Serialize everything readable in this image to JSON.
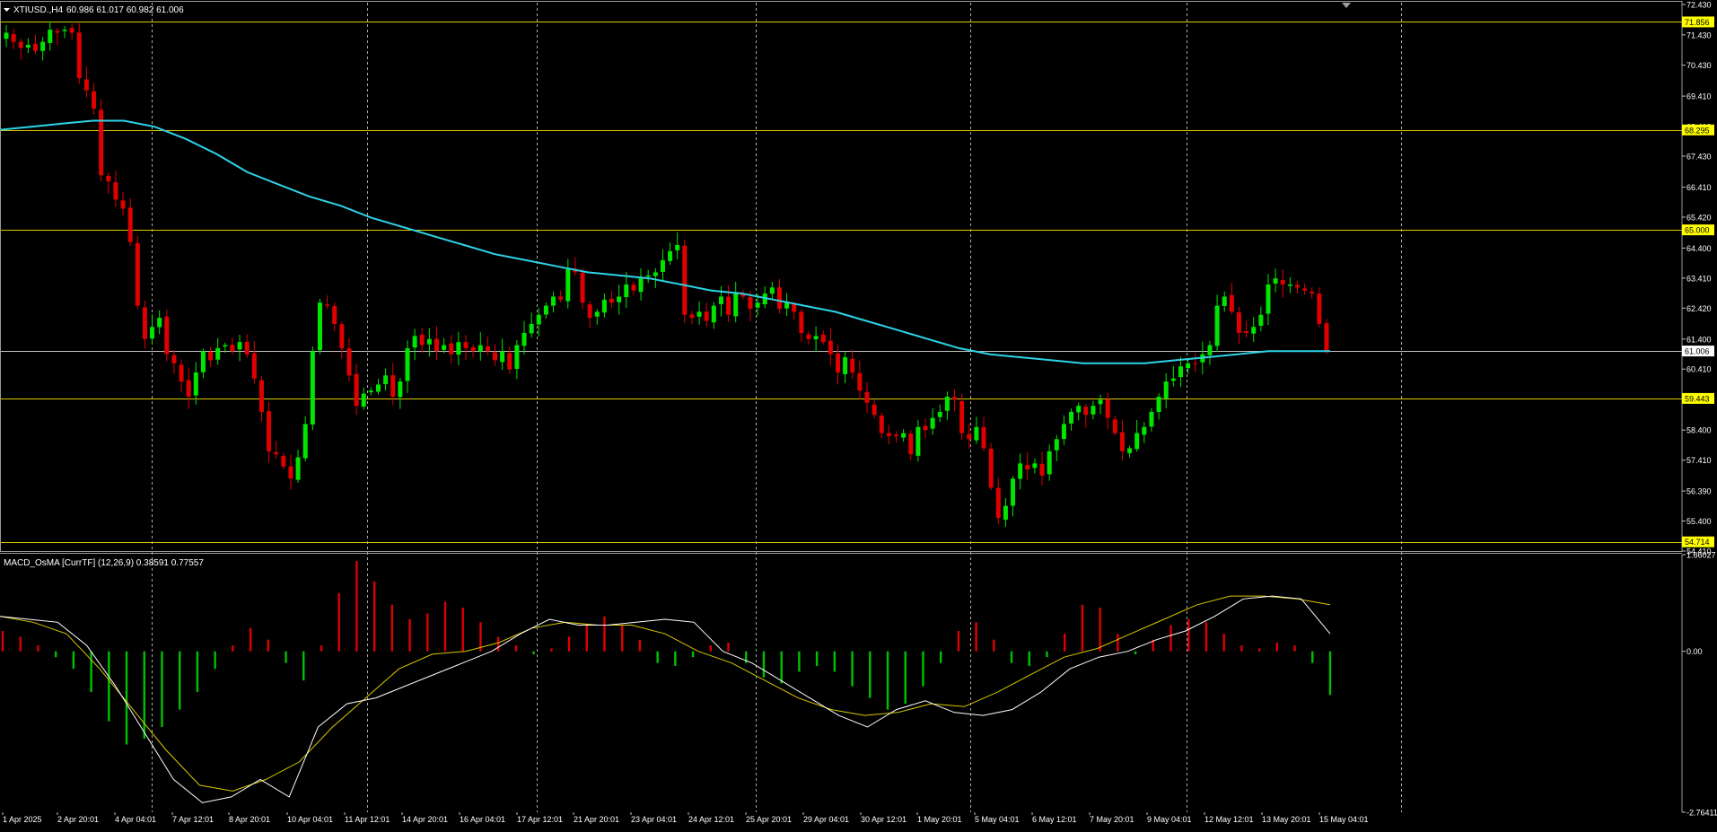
{
  "header": {
    "symbol": "XTIUSD.,H4",
    "ohlc": "60.986 61.017 60.982 61.006",
    "indicator_label": "MACD_OsMA [CurrTF] (12,26,9) 0.38591 0.77557"
  },
  "colors": {
    "background": "#000000",
    "bull": "#00e600",
    "bear": "#e00000",
    "ma_line": "#2ed3e6",
    "level_line": "#d8c800",
    "label_bg_yellow": "#ffff00",
    "current_price_line": "#c0c0c0",
    "macd_main": "#ffffff",
    "macd_signal": "#d8c800",
    "hist_up": "#e00000",
    "hist_down": "#00c000",
    "grid": "#c8c8c8"
  },
  "chart_data": [
    {
      "type": "candlestick",
      "timeframe": "H4",
      "symbol": "XTIUSD.",
      "ylim": [
        54.41,
        72.49
      ],
      "y_ticks": [
        "72.430",
        "71.430",
        "70.430",
        "69.410",
        "68.410",
        "67.430",
        "66.410",
        "65.420",
        "64.400",
        "63.410",
        "62.420",
        "61.400",
        "60.410",
        "59.400",
        "58.400",
        "57.410",
        "56.390",
        "55.400",
        "54.410"
      ],
      "price_labels": [
        {
          "text": "71.856",
          "value": 71.856,
          "style": "level"
        },
        {
          "text": "68.295",
          "value": 68.295,
          "style": "level"
        },
        {
          "text": "65.000",
          "value": 65.0,
          "style": "level"
        },
        {
          "text": "61.006",
          "value": 61.006,
          "style": "current"
        },
        {
          "text": "59.443",
          "value": 59.443,
          "style": "level"
        },
        {
          "text": "54.714",
          "value": 54.714,
          "style": "level"
        }
      ],
      "x_labels": [
        "1 Apr 2025",
        "2 Apr 20:01",
        "4 Apr 04:01",
        "7 Apr 12:01",
        "8 Apr 20:01",
        "10 Apr 04:01",
        "11 Apr 12:01",
        "14 Apr 20:01",
        "16 Apr 04:01",
        "17 Apr 12:01",
        "21 Apr 20:01",
        "23 Apr 04:01",
        "24 Apr 12:01",
        "25 Apr 20:01",
        "29 Apr 04:01",
        "30 Apr 12:01",
        "1 May 20:01",
        "5 May 04:01",
        "6 May 12:01",
        "7 May 20:01",
        "9 May 04:01",
        "12 May 12:01",
        "13 May 20:01",
        "15 May 04:01"
      ],
      "close_path": [
        71.5,
        71.2,
        71.0,
        71.1,
        70.9,
        71.2,
        71.6,
        71.5,
        71.6,
        71.5,
        70.0,
        69.6,
        69.0,
        66.8,
        66.6,
        66.0,
        65.7,
        64.6,
        62.5,
        61.4,
        61.8,
        62.1,
        60.9,
        60.6,
        60.0,
        59.5,
        60.3,
        61.0,
        60.7,
        61.1,
        61.2,
        61.0,
        61.3,
        60.9,
        60.1,
        59.0,
        57.7,
        57.6,
        57.2,
        56.8,
        57.5,
        58.6,
        61.0,
        62.6,
        62.5,
        61.9,
        61.1,
        60.2,
        59.2,
        59.6,
        59.7,
        59.9,
        60.2,
        59.5,
        60.0,
        61.1,
        61.5,
        61.2,
        61.4,
        61.0,
        61.2,
        60.9,
        61.3,
        61.1,
        61.0,
        61.2,
        61.0,
        60.7,
        61.0,
        60.4,
        61.2,
        61.6,
        61.9,
        62.2,
        62.5,
        62.8,
        62.7,
        63.7,
        63.6,
        62.6,
        62.1,
        62.3,
        62.7,
        62.6,
        62.8,
        63.2,
        63.0,
        63.4,
        63.5,
        63.6,
        64.0,
        64.3,
        64.5,
        62.2,
        62.1,
        62.3,
        62.0,
        62.5,
        62.8,
        62.2,
        62.9,
        62.8,
        62.4,
        62.6,
        62.9,
        63.1,
        62.4,
        62.6,
        62.3,
        61.6,
        61.4,
        61.5,
        61.3,
        60.9,
        60.3,
        60.8,
        60.3,
        59.7,
        59.3,
        58.9,
        58.3,
        58.2,
        58.2,
        58.3,
        57.6,
        58.5,
        58.4,
        58.8,
        59.0,
        59.5,
        59.4,
        58.3,
        58.1,
        58.5,
        57.8,
        56.5,
        55.5,
        55.9,
        56.8,
        57.3,
        57.1,
        57.3,
        56.9,
        57.7,
        58.1,
        58.6,
        59.0,
        59.2,
        58.9,
        59.2,
        59.4,
        58.8,
        58.3,
        57.7,
        57.8,
        58.3,
        58.5,
        59.0,
        59.5,
        60.0,
        60.1,
        60.5,
        60.6,
        60.6,
        60.9,
        61.2,
        62.5,
        62.8,
        62.3,
        61.6,
        61.6,
        61.8,
        62.2,
        63.2,
        63.4,
        63.2,
        63.2,
        63.1,
        63.0,
        62.9,
        61.9,
        61.0
      ],
      "ma_path": [
        68.3,
        68.4,
        68.5,
        68.6,
        68.6,
        68.4,
        68.0,
        67.5,
        66.9,
        66.5,
        66.1,
        65.8,
        65.4,
        65.1,
        64.8,
        64.5,
        64.2,
        64.0,
        63.8,
        63.6,
        63.5,
        63.4,
        63.2,
        63.0,
        62.9,
        62.7,
        62.5,
        62.3,
        62.0,
        61.7,
        61.4,
        61.1,
        60.9,
        60.8,
        60.7,
        60.6,
        60.6,
        60.6,
        60.7,
        60.8,
        60.9,
        61.0,
        61.0,
        61.0
      ]
    },
    {
      "type": "bar",
      "name": "MACD_OsMA [CurrTF] (12,26,9)",
      "ylim": [
        -2.76411,
        1.66027
      ],
      "y_ticks": [
        "1.66027",
        "0.00",
        "-2.76411"
      ],
      "histogram": [
        0.35,
        0.25,
        0.1,
        -0.1,
        -0.3,
        -0.7,
        -1.2,
        -1.6,
        -1.5,
        -1.3,
        -1.0,
        -0.7,
        -0.3,
        0.1,
        0.4,
        0.2,
        -0.2,
        -0.5,
        0.1,
        1.0,
        1.55,
        1.2,
        0.8,
        0.55,
        0.65,
        0.85,
        0.75,
        0.5,
        0.25,
        0.1,
        -0.05,
        0.05,
        0.25,
        0.45,
        0.6,
        0.45,
        0.2,
        -0.2,
        -0.25,
        -0.1,
        0.1,
        0.15,
        -0.2,
        -0.45,
        -0.55,
        -0.35,
        -0.25,
        -0.35,
        -0.6,
        -0.8,
        -1.0,
        -0.9,
        -0.6,
        -0.2,
        0.35,
        0.5,
        0.2,
        -0.2,
        -0.25,
        -0.1,
        0.3,
        0.8,
        0.75,
        0.3,
        -0.05,
        0.2,
        0.45,
        0.55,
        0.5,
        0.3,
        0.1,
        0.05,
        0.15,
        0.1,
        -0.2,
        -0.75
      ],
      "main_line": [
        0.6,
        0.55,
        0.5,
        0.1,
        -0.6,
        -1.4,
        -2.2,
        -2.6,
        -2.5,
        -2.2,
        -2.5,
        -1.3,
        -0.9,
        -0.8,
        -0.6,
        -0.4,
        -0.2,
        0.0,
        0.3,
        0.55,
        0.45,
        0.45,
        0.5,
        0.55,
        0.5,
        0.0,
        -0.2,
        -0.5,
        -0.8,
        -1.1,
        -1.3,
        -1.0,
        -0.85,
        -1.05,
        -1.1,
        -1.0,
        -0.7,
        -0.3,
        -0.1,
        0.0,
        0.2,
        0.35,
        0.6,
        0.9,
        0.95,
        0.9,
        0.3
      ],
      "signal_line": [
        0.6,
        0.5,
        0.3,
        -0.3,
        -1.0,
        -1.7,
        -2.3,
        -2.4,
        -2.2,
        -1.9,
        -1.3,
        -0.8,
        -0.3,
        -0.05,
        0.0,
        0.15,
        0.4,
        0.5,
        0.45,
        0.45,
        0.3,
        0.0,
        -0.2,
        -0.5,
        -0.8,
        -1.0,
        -1.1,
        -1.05,
        -0.9,
        -0.95,
        -0.7,
        -0.4,
        -0.1,
        0.05,
        0.3,
        0.55,
        0.8,
        0.95,
        0.95,
        0.9,
        0.8
      ]
    }
  ]
}
